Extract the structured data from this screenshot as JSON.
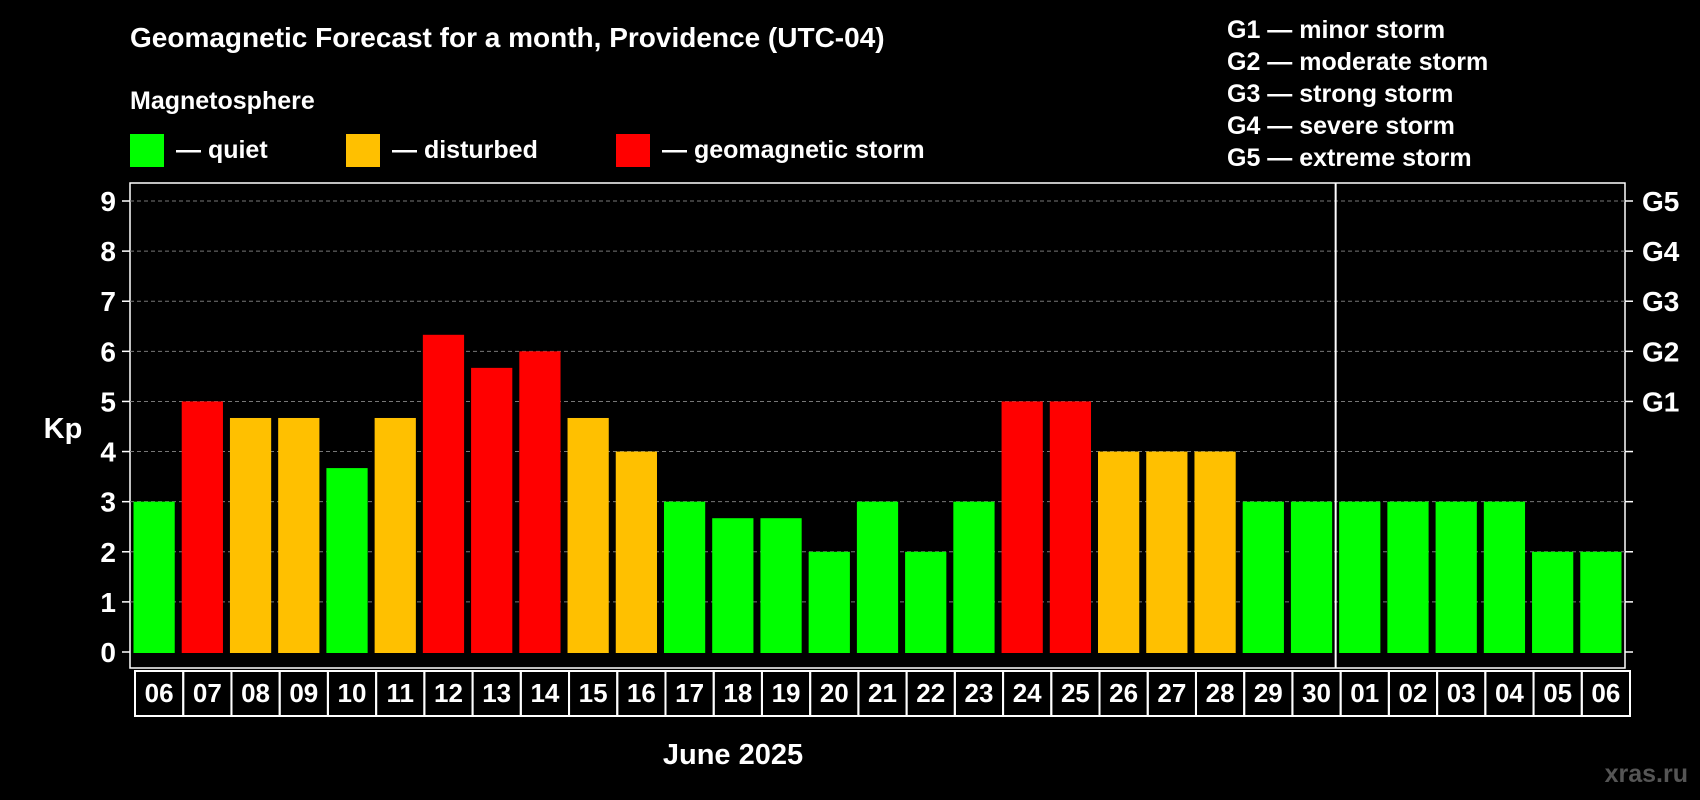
{
  "chart_data": {
    "type": "bar",
    "title": "Geomagnetic Forecast for a month, Providence (UTC-04)",
    "legend_heading": "Magnetosphere",
    "legend": [
      {
        "label": "— quiet",
        "color": "#00ff00"
      },
      {
        "label": "— disturbed",
        "color": "#ffc000"
      },
      {
        "label": "— geomagnetic storm",
        "color": "#ff0000"
      }
    ],
    "storm_scale": [
      "G1 — minor storm",
      "G2 — moderate storm",
      "G3 — strong storm",
      "G4 — severe storm",
      "G5 — extreme storm"
    ],
    "ylabel": "Kp",
    "xlabel": "June 2025",
    "ylim": [
      0,
      9
    ],
    "yticks": [
      "0",
      "1",
      "2",
      "3",
      "4",
      "5",
      "6",
      "7",
      "8",
      "9"
    ],
    "right_axis": [
      {
        "kp": 5,
        "label": "G1"
      },
      {
        "kp": 6,
        "label": "G2"
      },
      {
        "kp": 7,
        "label": "G3"
      },
      {
        "kp": 8,
        "label": "G4"
      },
      {
        "kp": 9,
        "label": "G5"
      }
    ],
    "month_divider_after_index": 24,
    "categories": [
      "06",
      "07",
      "08",
      "09",
      "10",
      "11",
      "12",
      "13",
      "14",
      "15",
      "16",
      "17",
      "18",
      "19",
      "20",
      "21",
      "22",
      "23",
      "24",
      "25",
      "26",
      "27",
      "28",
      "29",
      "30",
      "01",
      "02",
      "03",
      "04",
      "05",
      "06"
    ],
    "values": [
      3,
      5,
      4.67,
      4.67,
      3.67,
      4.67,
      6.33,
      5.67,
      6,
      4.67,
      4,
      3,
      2.67,
      2.67,
      2,
      3,
      2,
      3,
      5,
      5,
      4,
      4,
      4,
      3,
      3,
      3,
      3,
      3,
      3,
      2,
      2
    ],
    "levels": [
      "quiet",
      "storm",
      "disturbed",
      "disturbed",
      "quiet",
      "disturbed",
      "storm",
      "storm",
      "storm",
      "disturbed",
      "disturbed",
      "quiet",
      "quiet",
      "quiet",
      "quiet",
      "quiet",
      "quiet",
      "quiet",
      "storm",
      "storm",
      "disturbed",
      "disturbed",
      "disturbed",
      "quiet",
      "quiet",
      "quiet",
      "quiet",
      "quiet",
      "quiet",
      "quiet",
      "quiet"
    ],
    "level_colors": {
      "quiet": "#00ff00",
      "disturbed": "#ffc000",
      "storm": "#ff0000"
    },
    "gridlines": "dashed"
  },
  "watermark": "xras.ru"
}
